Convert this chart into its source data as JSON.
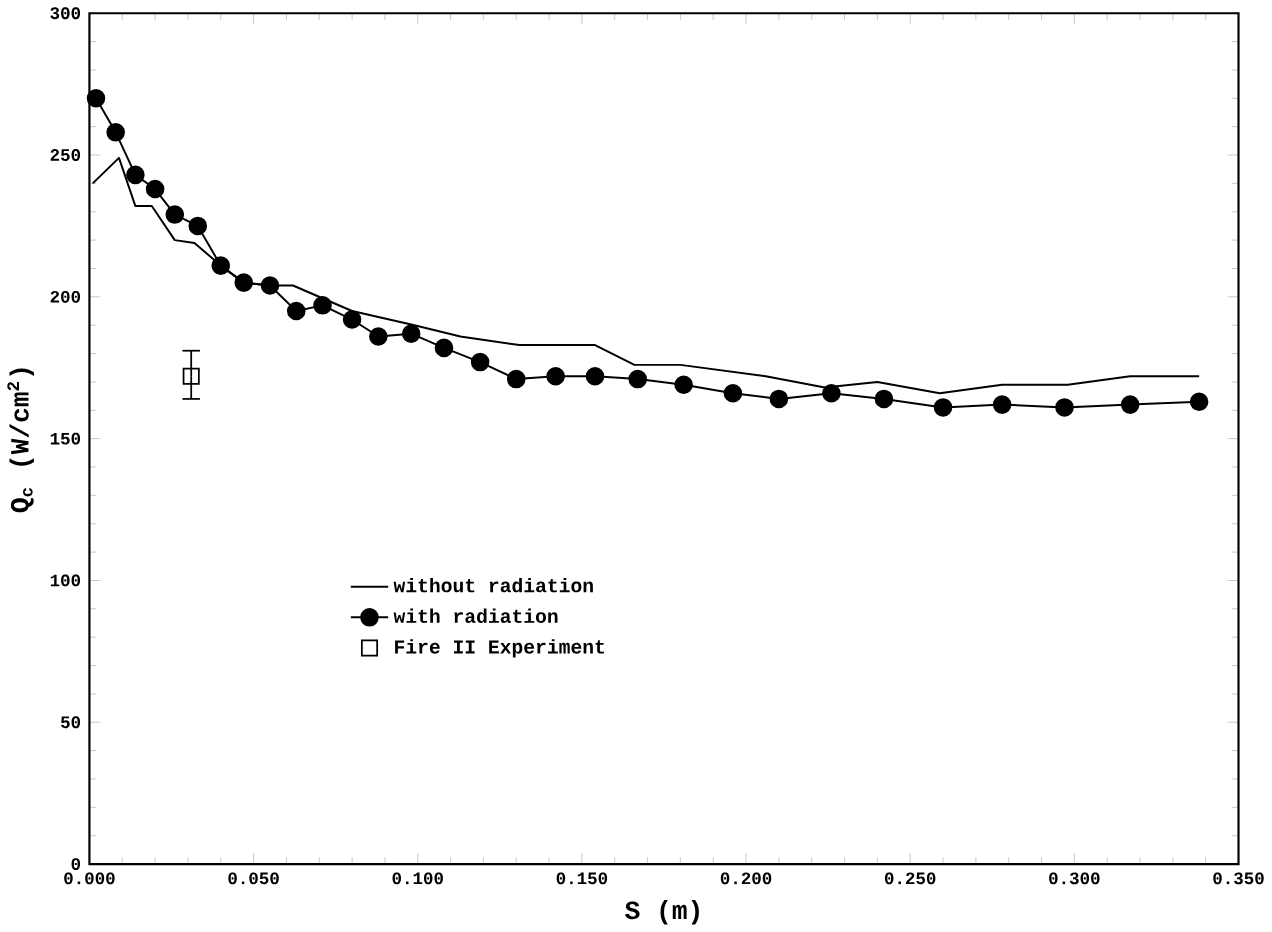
{
  "chart_data": {
    "type": "line",
    "xlabel": "S  (m)",
    "ylabel": "Q$_{c}$  (W/cm$^{2}$)",
    "xlim": [
      0,
      0.35
    ],
    "ylim": [
      0,
      300
    ],
    "xticks": [
      {
        "value": 0,
        "label": "0.000"
      },
      {
        "value": 0.05,
        "label": "0.050"
      },
      {
        "value": 0.1,
        "label": "0.100"
      },
      {
        "value": 0.15,
        "label": "0.150"
      },
      {
        "value": 0.2,
        "label": "0.200"
      },
      {
        "value": 0.25,
        "label": "0.250"
      },
      {
        "value": 0.3,
        "label": "0.300"
      },
      {
        "value": 0.35,
        "label": "0.350"
      }
    ],
    "yticks": [
      0,
      50,
      100,
      150,
      200,
      250,
      300
    ],
    "legend": "center",
    "grid": false,
    "series": [
      {
        "name": "without radiation",
        "marker": "none",
        "color": "#000000",
        "x": [
          0.001,
          0.009,
          0.014,
          0.019,
          0.026,
          0.032,
          0.04,
          0.047,
          0.055,
          0.062,
          0.068,
          0.08,
          0.099,
          0.113,
          0.131,
          0.154,
          0.166,
          0.18,
          0.206,
          0.224,
          0.24,
          0.259,
          0.278,
          0.298,
          0.317,
          0.338
        ],
        "values": [
          240,
          249,
          232,
          232,
          220,
          219,
          211,
          205,
          204,
          204,
          201,
          195,
          190,
          186,
          183,
          183,
          176,
          176,
          172,
          168,
          170,
          166,
          169,
          169,
          172,
          172
        ]
      },
      {
        "name": "with radiation",
        "marker": "circle",
        "color": "#000000",
        "x": [
          0.002,
          0.008,
          0.014,
          0.02,
          0.026,
          0.033,
          0.04,
          0.047,
          0.055,
          0.063,
          0.071,
          0.08,
          0.088,
          0.098,
          0.108,
          0.119,
          0.13,
          0.142,
          0.154,
          0.167,
          0.181,
          0.196,
          0.21,
          0.226,
          0.242,
          0.26,
          0.278,
          0.297,
          0.317,
          0.338
        ],
        "values": [
          270,
          258,
          243,
          238,
          229,
          225,
          211,
          205,
          204,
          195,
          197,
          192,
          186,
          187,
          182,
          177,
          171,
          172,
          172,
          171,
          169,
          166,
          164,
          166,
          164,
          161,
          162,
          161,
          162,
          163
        ]
      },
      {
        "name": "Fire II Experiment",
        "type": "scatter",
        "marker": "square",
        "color": "#000000",
        "x": [
          0.031
        ],
        "values": [
          172
        ],
        "errors": [
          [
            164,
            181
          ]
        ]
      }
    ]
  }
}
